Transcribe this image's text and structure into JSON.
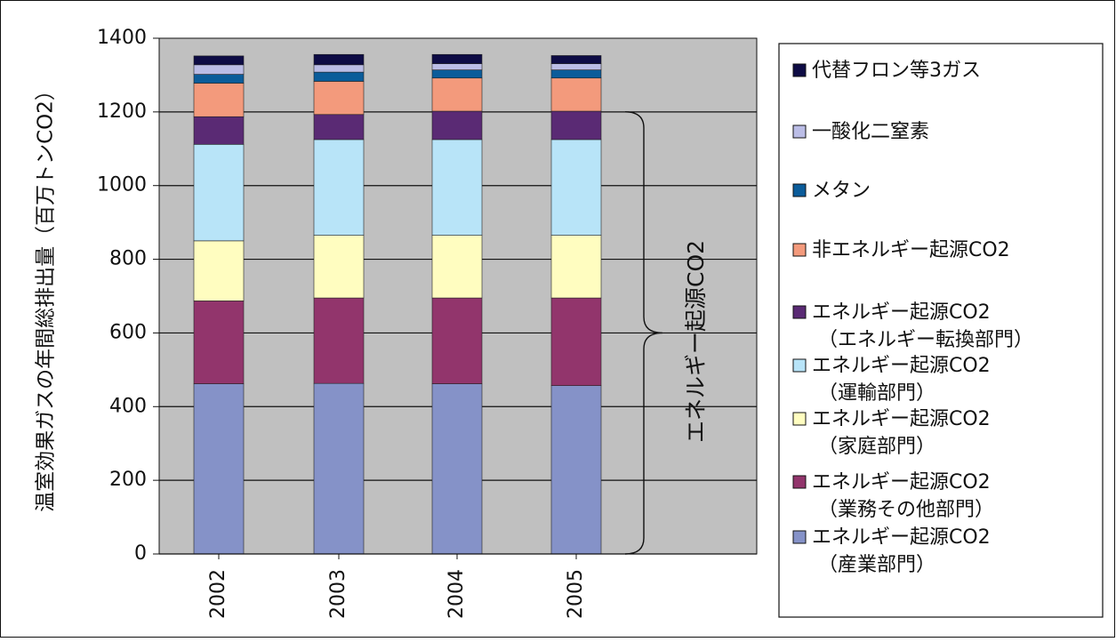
{
  "chart_data": {
    "type": "bar",
    "stacked": true,
    "categories": [
      "2002",
      "2003",
      "2004",
      "2005"
    ],
    "ylabel": "温室効果ガスの年間総排出量（百万トンCO2）",
    "xlabel": "",
    "ylim": [
      0,
      1400
    ],
    "yticks": [
      "0",
      "200",
      "400",
      "600",
      "800",
      "1000",
      "1200",
      "1400"
    ],
    "grid": true,
    "legend_position": "right",
    "series": [
      {
        "name_lines": [
          "エネルギー起源CO2",
          "（産業部門）"
        ],
        "color": "#8592C8",
        "values": [
          462,
          463,
          462,
          457
        ]
      },
      {
        "name_lines": [
          "エネルギー起源CO2",
          "（業務その他部門）"
        ],
        "color": "#92356C",
        "values": [
          225,
          232,
          233,
          238
        ]
      },
      {
        "name_lines": [
          "エネルギー起源CO2",
          "（家庭部門）"
        ],
        "color": "#FFFDC0",
        "values": [
          163,
          170,
          170,
          170
        ]
      },
      {
        "name_lines": [
          "エネルギー起源CO2",
          "（運輸部門）"
        ],
        "color": "#B8E4F8",
        "values": [
          262,
          260,
          260,
          260
        ]
      },
      {
        "name_lines": [
          "エネルギー起源CO2",
          "（エネルギー転換部門）"
        ],
        "color": "#5A2A74",
        "values": [
          75,
          68,
          77,
          77
        ]
      },
      {
        "name_lines": [
          "非エネルギー起源CO2"
        ],
        "color": "#F39A7C",
        "values": [
          91,
          90,
          90,
          90
        ]
      },
      {
        "name_lines": [
          "メタン"
        ],
        "color": "#0B5C9A",
        "values": [
          24,
          25,
          22,
          22
        ]
      },
      {
        "name_lines": [
          "一酸化二窒素"
        ],
        "color": "#BBBDE6",
        "values": [
          26,
          20,
          17,
          17
        ]
      },
      {
        "name_lines": [
          "代替フロン等3ガス"
        ],
        "color": "#0E0C45",
        "values": [
          24,
          28,
          25,
          22
        ]
      }
    ],
    "bracket": {
      "label": "エネルギー起源CO2",
      "from": 0,
      "to": 1200
    },
    "plot_background": "#C0C0C0"
  }
}
